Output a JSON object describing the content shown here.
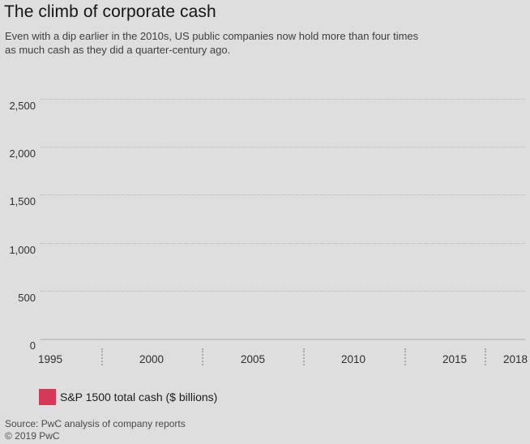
{
  "header": {
    "title": "The climb of corporate cash",
    "subtitle_line1": "Even with a dip earlier in the 2010s, US public companies now hold more than four times",
    "subtitle_line2": "as much cash as they did a quarter-century ago."
  },
  "chart_data": {
    "type": "line",
    "title": "The climb of corporate cash",
    "xlabel": "",
    "ylabel": "",
    "ylim": [
      0,
      2500
    ],
    "grid": "horizontal-dotted",
    "y_ticks": [
      {
        "value": 0,
        "label": "0"
      },
      {
        "value": 500,
        "label": "500"
      },
      {
        "value": 1000,
        "label": "1,000"
      },
      {
        "value": 1500,
        "label": "1,500"
      },
      {
        "value": 2000,
        "label": "2,000"
      },
      {
        "value": 2500,
        "label": "2,500"
      }
    ],
    "x_ticks": [
      {
        "year": 1995,
        "label": "1995"
      },
      {
        "year": 2000,
        "label": "2000"
      },
      {
        "year": 2005,
        "label": "2005"
      },
      {
        "year": 2010,
        "label": "2010"
      },
      {
        "year": 2015,
        "label": "2015"
      },
      {
        "year": 2018,
        "label": "2018"
      }
    ],
    "x_range_years": [
      1995,
      2018
    ],
    "legend": {
      "label": "S&P 1500 total cash ($ billions)",
      "swatch_color": "#d43a57",
      "position": "below-chart"
    },
    "series": [
      {
        "name": "S&P 1500 total cash ($ billions)",
        "color": "#d43a57",
        "values": []
      }
    ],
    "plotted_points_visible": false
  },
  "footer": {
    "source": "Source: PwC analysis of company reports",
    "copyright": "© 2019 PwC"
  }
}
